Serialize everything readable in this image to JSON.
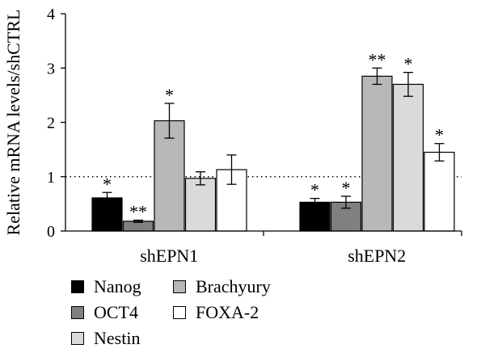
{
  "chart_data": {
    "type": "bar",
    "categories": [
      "shEPN1",
      "shEPN2"
    ],
    "ylabel": "Relative mRNA levels/shCTRL",
    "ylim": [
      0,
      4
    ],
    "yticks": [
      "0",
      "1",
      "2",
      "3",
      "4"
    ],
    "reference_line": 1,
    "legend_position": "bottom",
    "series": [
      {
        "name": "Nanog",
        "color": "#000000",
        "values": [
          0.61,
          0.53
        ],
        "errors": [
          0.1,
          0.07
        ],
        "sig": [
          "*",
          "*"
        ]
      },
      {
        "name": "OCT4",
        "color": "#808080",
        "values": [
          0.18,
          0.53
        ],
        "errors": [
          0.02,
          0.11
        ],
        "sig": [
          "**",
          "*"
        ]
      },
      {
        "name": "Brachyury",
        "color": "#b8b8b8",
        "values": [
          2.03,
          2.85
        ],
        "errors": [
          0.32,
          0.15
        ],
        "sig": [
          "*",
          "**"
        ]
      },
      {
        "name": "Nestin",
        "color": "#dadada",
        "values": [
          0.97,
          2.7
        ],
        "errors": [
          0.12,
          0.22
        ],
        "sig": [
          "",
          "*"
        ]
      },
      {
        "name": "FOXA-2",
        "color": "#ffffff",
        "values": [
          1.13,
          1.45
        ],
        "errors": [
          0.27,
          0.16
        ],
        "sig": [
          "",
          "*"
        ]
      }
    ]
  }
}
